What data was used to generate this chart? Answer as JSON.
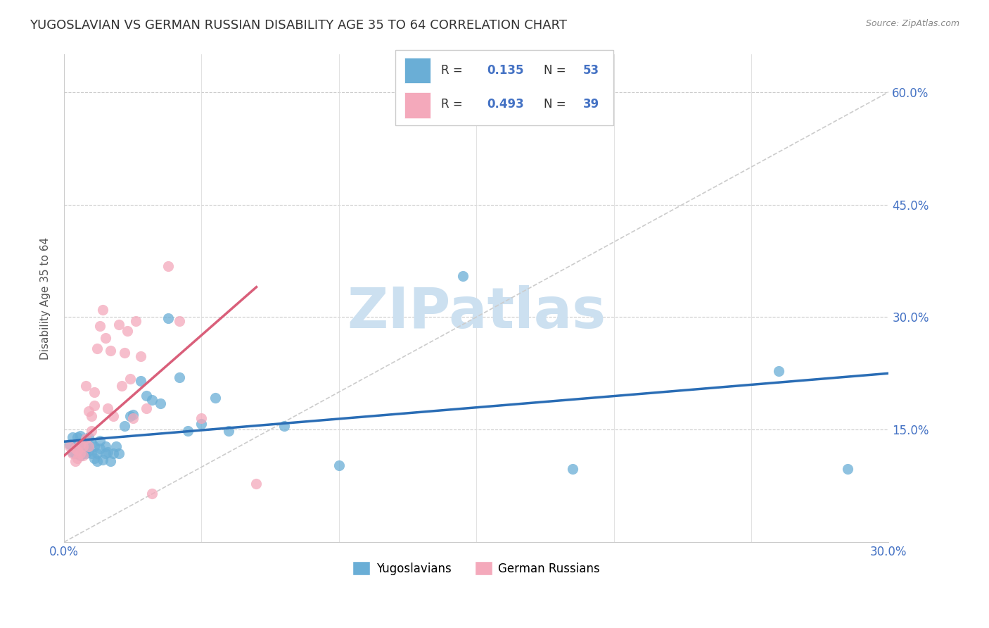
{
  "title": "YUGOSLAVIAN VS GERMAN RUSSIAN DISABILITY AGE 35 TO 64 CORRELATION CHART",
  "source": "Source: ZipAtlas.com",
  "ylabel": "Disability Age 35 to 64",
  "xlim": [
    0.0,
    0.3
  ],
  "ylim": [
    0.0,
    0.65
  ],
  "xticks": [
    0.0,
    0.05,
    0.1,
    0.15,
    0.2,
    0.25,
    0.3
  ],
  "yticks_right": [
    0.15,
    0.3,
    0.45,
    0.6
  ],
  "ytick_right_labels": [
    "15.0%",
    "30.0%",
    "45.0%",
    "60.0%"
  ],
  "xtick_labels": [
    "0.0%",
    "",
    "",
    "",
    "",
    "",
    "30.0%"
  ],
  "blue_color": "#6aaed6",
  "pink_color": "#f4a9bb",
  "blue_line_color": "#2a6db5",
  "pink_line_color": "#d95f7a",
  "diag_line_color": "#cccccc",
  "watermark_color": "#cce0f0",
  "legend_bottom_blue": "Yugoslavians",
  "legend_bottom_pink": "German Russians",
  "blue_scatter_x": [
    0.002,
    0.003,
    0.003,
    0.004,
    0.004,
    0.005,
    0.005,
    0.005,
    0.006,
    0.006,
    0.006,
    0.007,
    0.007,
    0.008,
    0.008,
    0.008,
    0.009,
    0.009,
    0.01,
    0.01,
    0.011,
    0.011,
    0.012,
    0.012,
    0.013,
    0.013,
    0.014,
    0.015,
    0.015,
    0.016,
    0.017,
    0.018,
    0.019,
    0.02,
    0.022,
    0.024,
    0.025,
    0.028,
    0.03,
    0.032,
    0.035,
    0.038,
    0.042,
    0.045,
    0.05,
    0.055,
    0.06,
    0.08,
    0.1,
    0.145,
    0.185,
    0.26,
    0.285
  ],
  "blue_scatter_y": [
    0.13,
    0.12,
    0.14,
    0.128,
    0.118,
    0.14,
    0.125,
    0.132,
    0.115,
    0.142,
    0.128,
    0.118,
    0.132,
    0.118,
    0.128,
    0.138,
    0.122,
    0.14,
    0.118,
    0.132,
    0.112,
    0.128,
    0.118,
    0.108,
    0.125,
    0.135,
    0.11,
    0.128,
    0.118,
    0.12,
    0.108,
    0.118,
    0.128,
    0.118,
    0.155,
    0.168,
    0.17,
    0.215,
    0.195,
    0.19,
    0.185,
    0.298,
    0.22,
    0.148,
    0.158,
    0.192,
    0.148,
    0.155,
    0.102,
    0.355,
    0.098,
    0.228,
    0.098
  ],
  "pink_scatter_x": [
    0.002,
    0.003,
    0.004,
    0.004,
    0.005,
    0.005,
    0.006,
    0.006,
    0.007,
    0.007,
    0.008,
    0.008,
    0.009,
    0.009,
    0.01,
    0.01,
    0.011,
    0.011,
    0.012,
    0.013,
    0.014,
    0.015,
    0.016,
    0.017,
    0.018,
    0.02,
    0.021,
    0.022,
    0.023,
    0.024,
    0.025,
    0.026,
    0.028,
    0.03,
    0.032,
    0.038,
    0.042,
    0.05,
    0.07
  ],
  "pink_scatter_y": [
    0.128,
    0.118,
    0.125,
    0.108,
    0.122,
    0.112,
    0.13,
    0.118,
    0.128,
    0.115,
    0.208,
    0.138,
    0.128,
    0.175,
    0.168,
    0.148,
    0.2,
    0.182,
    0.258,
    0.288,
    0.31,
    0.272,
    0.178,
    0.255,
    0.168,
    0.29,
    0.208,
    0.252,
    0.282,
    0.218,
    0.165,
    0.295,
    0.248,
    0.178,
    0.065,
    0.368,
    0.295,
    0.165,
    0.078
  ],
  "blue_line_x0": 0.0,
  "blue_line_y0": 0.134,
  "blue_line_x1": 0.3,
  "blue_line_y1": 0.225,
  "pink_line_x0": 0.0,
  "pink_line_y0": 0.115,
  "pink_line_x1": 0.07,
  "pink_line_y1": 0.34
}
